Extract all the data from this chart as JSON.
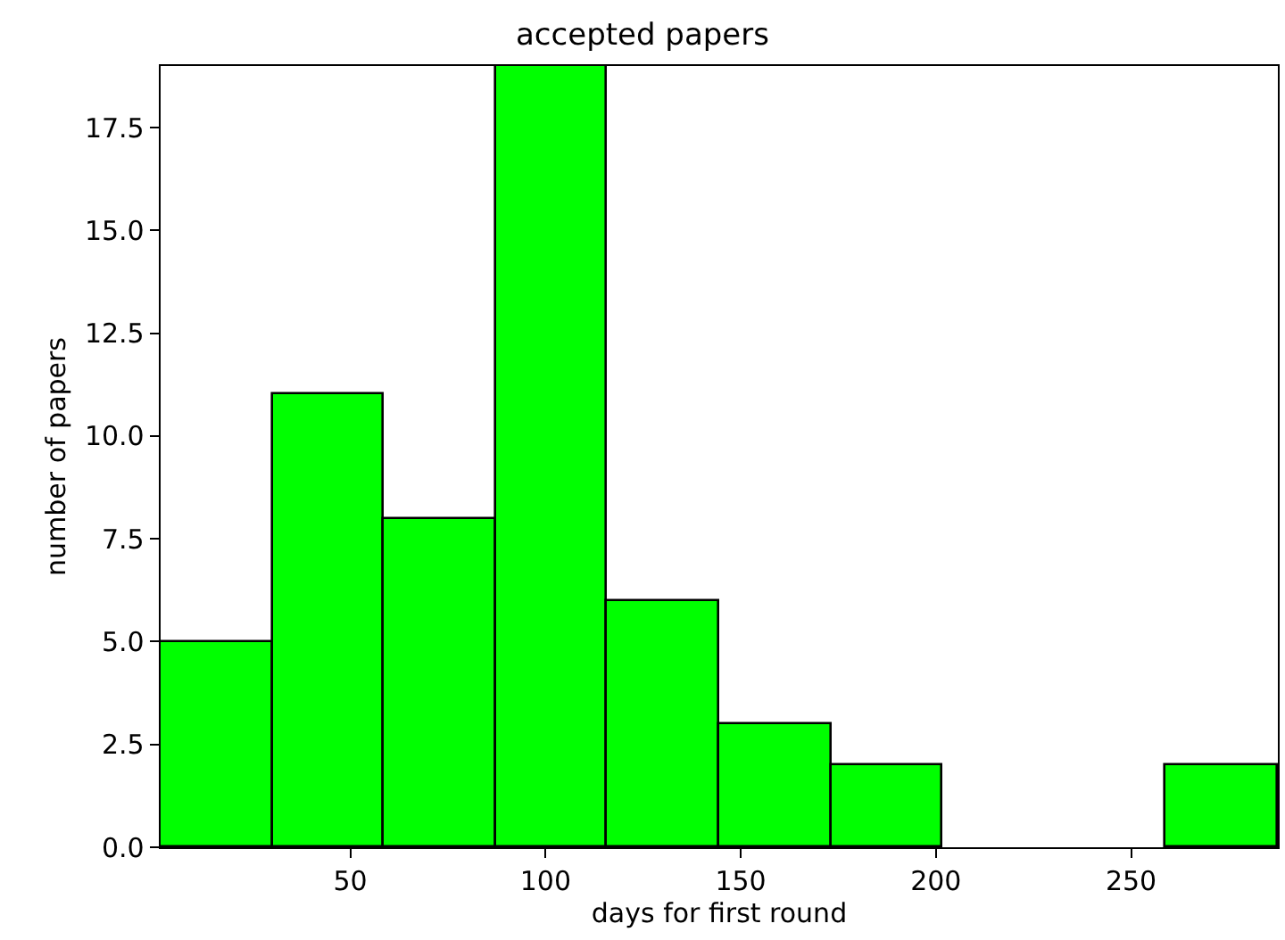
{
  "chart_data": {
    "type": "histogram",
    "title": "accepted papers",
    "xlabel": "days for first round",
    "ylabel": "number of papers",
    "bins": [
      1.4,
      30.0,
      58.7,
      87.3,
      115.9,
      144.5,
      173.2,
      201.8,
      230.4,
      259.0,
      287.6
    ],
    "values": [
      5,
      11,
      8,
      19,
      6,
      3,
      2,
      0,
      0,
      2
    ],
    "color": "#00ff00",
    "xlim": [
      1.4,
      287.6
    ],
    "xticks": [
      50,
      100,
      150,
      200,
      250
    ],
    "ylim": [
      0,
      19
    ],
    "yticks": [
      {
        "value": 0,
        "label": "0.0"
      },
      {
        "value": 2.5,
        "label": "2.5"
      },
      {
        "value": 5,
        "label": "5.0"
      },
      {
        "value": 7.5,
        "label": "7.5"
      },
      {
        "value": 10,
        "label": "10.0"
      },
      {
        "value": 12.5,
        "label": "12.5"
      },
      {
        "value": 15,
        "label": "15.0"
      },
      {
        "value": 17.5,
        "label": "17.5"
      }
    ]
  }
}
